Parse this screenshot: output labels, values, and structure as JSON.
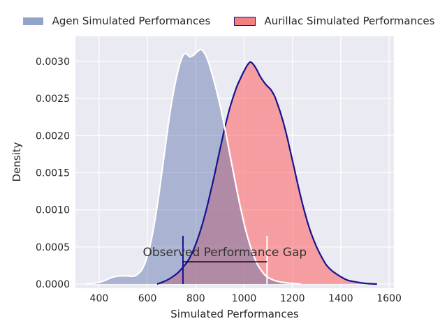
{
  "style": {
    "figure_bg": "#ffffff",
    "plot_bg": "#eaeaf2",
    "grid_color": "#ffffff",
    "text_color": "#262626",
    "tick_font_px": 14
  },
  "chart_data": {
    "type": "area",
    "subtype": "kde-density",
    "title": "",
    "xlabel": "Simulated Performances",
    "ylabel": "Density",
    "grid": true,
    "legend_position": "top-center",
    "xlim": [
      302,
      1620
    ],
    "ylim": [
      -5.6e-05,
      0.003337
    ],
    "xticks": {
      "values": [
        400,
        600,
        800,
        1000,
        1200,
        1400,
        1600
      ],
      "labels": [
        "400",
        "600",
        "800",
        "1000",
        "1200",
        "1400",
        "1600"
      ]
    },
    "yticks": {
      "values": [
        0.0,
        0.0005,
        0.001,
        0.0015,
        0.002,
        0.0025,
        0.003
      ],
      "labels": [
        "0.0000",
        "0.0005",
        "0.0010",
        "0.0015",
        "0.0020",
        "0.0025",
        "0.0030"
      ]
    },
    "series": [
      {
        "name": "Agen Simulated Performances",
        "line_color": "#ffffff",
        "line_width": 2.2,
        "fill_rgba": "rgba(93,115,171,0.45)",
        "swatch_fill": "#92a4c8",
        "swatch_border": "#ffffff",
        "peak": {
          "x": 822,
          "density": 0.00316
        },
        "points": [
          [
            348,
            0
          ],
          [
            375,
            1e-05
          ],
          [
            400,
            2.5e-05
          ],
          [
            425,
            5e-05
          ],
          [
            445,
            8e-05
          ],
          [
            465,
            0.0001
          ],
          [
            490,
            0.00011
          ],
          [
            515,
            0.00011
          ],
          [
            540,
            0.000105
          ],
          [
            558,
            0.00013
          ],
          [
            578,
            0.0002
          ],
          [
            598,
            0.00036
          ],
          [
            615,
            0.00058
          ],
          [
            632,
            0.00088
          ],
          [
            648,
            0.00122
          ],
          [
            663,
            0.00158
          ],
          [
            678,
            0.00195
          ],
          [
            693,
            0.0023
          ],
          [
            708,
            0.00259
          ],
          [
            722,
            0.00281
          ],
          [
            736,
            0.00299
          ],
          [
            750,
            0.00309
          ],
          [
            762,
            0.0031
          ],
          [
            775,
            0.00306
          ],
          [
            790,
            0.00308
          ],
          [
            806,
            0.00313
          ],
          [
            822,
            0.00316
          ],
          [
            836,
            0.00311
          ],
          [
            850,
            0.00301
          ],
          [
            864,
            0.00287
          ],
          [
            880,
            0.00268
          ],
          [
            896,
            0.00247
          ],
          [
            912,
            0.00223
          ],
          [
            928,
            0.00197
          ],
          [
            944,
            0.0017
          ],
          [
            960,
            0.00143
          ],
          [
            976,
            0.00117
          ],
          [
            992,
            0.00093
          ],
          [
            1008,
            0.00071
          ],
          [
            1024,
            0.00053
          ],
          [
            1040,
            0.00038
          ],
          [
            1056,
            0.00026
          ],
          [
            1072,
            0.00018
          ],
          [
            1090,
            0.00011
          ],
          [
            1110,
            7e-05
          ],
          [
            1135,
            4e-05
          ],
          [
            1165,
            2e-05
          ],
          [
            1200,
            1e-05
          ],
          [
            1235,
            0
          ]
        ]
      },
      {
        "name": "Aurillac Simulated Performances",
        "line_color": "#18128f",
        "line_width": 2.2,
        "fill_rgba": "rgba(255,92,95,0.55)",
        "swatch_fill": "#f57f7f",
        "swatch_border": "#18128f",
        "peak": {
          "x": 1025,
          "density": 0.003
        },
        "points": [
          [
            640,
            0
          ],
          [
            665,
            3e-05
          ],
          [
            685,
            6e-05
          ],
          [
            705,
            0.0001
          ],
          [
            725,
            0.00015
          ],
          [
            745,
            0.00022
          ],
          [
            765,
            0.0003
          ],
          [
            785,
            0.00042
          ],
          [
            805,
            0.00058
          ],
          [
            825,
            0.00078
          ],
          [
            845,
            0.00102
          ],
          [
            862,
            0.00125
          ],
          [
            878,
            0.00148
          ],
          [
            894,
            0.00172
          ],
          [
            910,
            0.00196
          ],
          [
            925,
            0.00217
          ],
          [
            940,
            0.00236
          ],
          [
            955,
            0.00252
          ],
          [
            970,
            0.00266
          ],
          [
            985,
            0.00277
          ],
          [
            1000,
            0.00287
          ],
          [
            1012,
            0.00294
          ],
          [
            1025,
            0.00299
          ],
          [
            1038,
            0.00296
          ],
          [
            1052,
            0.00289
          ],
          [
            1066,
            0.0028
          ],
          [
            1080,
            0.00273
          ],
          [
            1095,
            0.00267
          ],
          [
            1110,
            0.00262
          ],
          [
            1125,
            0.00254
          ],
          [
            1140,
            0.00241
          ],
          [
            1155,
            0.00226
          ],
          [
            1172,
            0.00206
          ],
          [
            1190,
            0.00181
          ],
          [
            1208,
            0.00155
          ],
          [
            1226,
            0.00129
          ],
          [
            1244,
            0.00105
          ],
          [
            1262,
            0.00084
          ],
          [
            1280,
            0.00066
          ],
          [
            1300,
            0.0005
          ],
          [
            1320,
            0.00037
          ],
          [
            1340,
            0.00026
          ],
          [
            1360,
            0.00019
          ],
          [
            1380,
            0.00014
          ],
          [
            1405,
            9e-05
          ],
          [
            1430,
            5e-05
          ],
          [
            1460,
            3e-05
          ],
          [
            1500,
            1e-05
          ],
          [
            1550,
            0
          ]
        ]
      }
    ],
    "annotations": {
      "text": "Observed Performance Gap",
      "text_x": 920,
      "text_y": 0.00042,
      "vlines": [
        {
          "x": 747,
          "y0": 0,
          "y1": 0.00065,
          "color": "#18128f",
          "width": 2
        },
        {
          "x": 1095,
          "y0": 0,
          "y1": 0.00065,
          "color": "#ffffff",
          "width": 2
        }
      ],
      "hline": {
        "y": 0.0003,
        "x0": 747,
        "x1": 1095,
        "color": "#000000",
        "width": 1.6
      }
    }
  }
}
